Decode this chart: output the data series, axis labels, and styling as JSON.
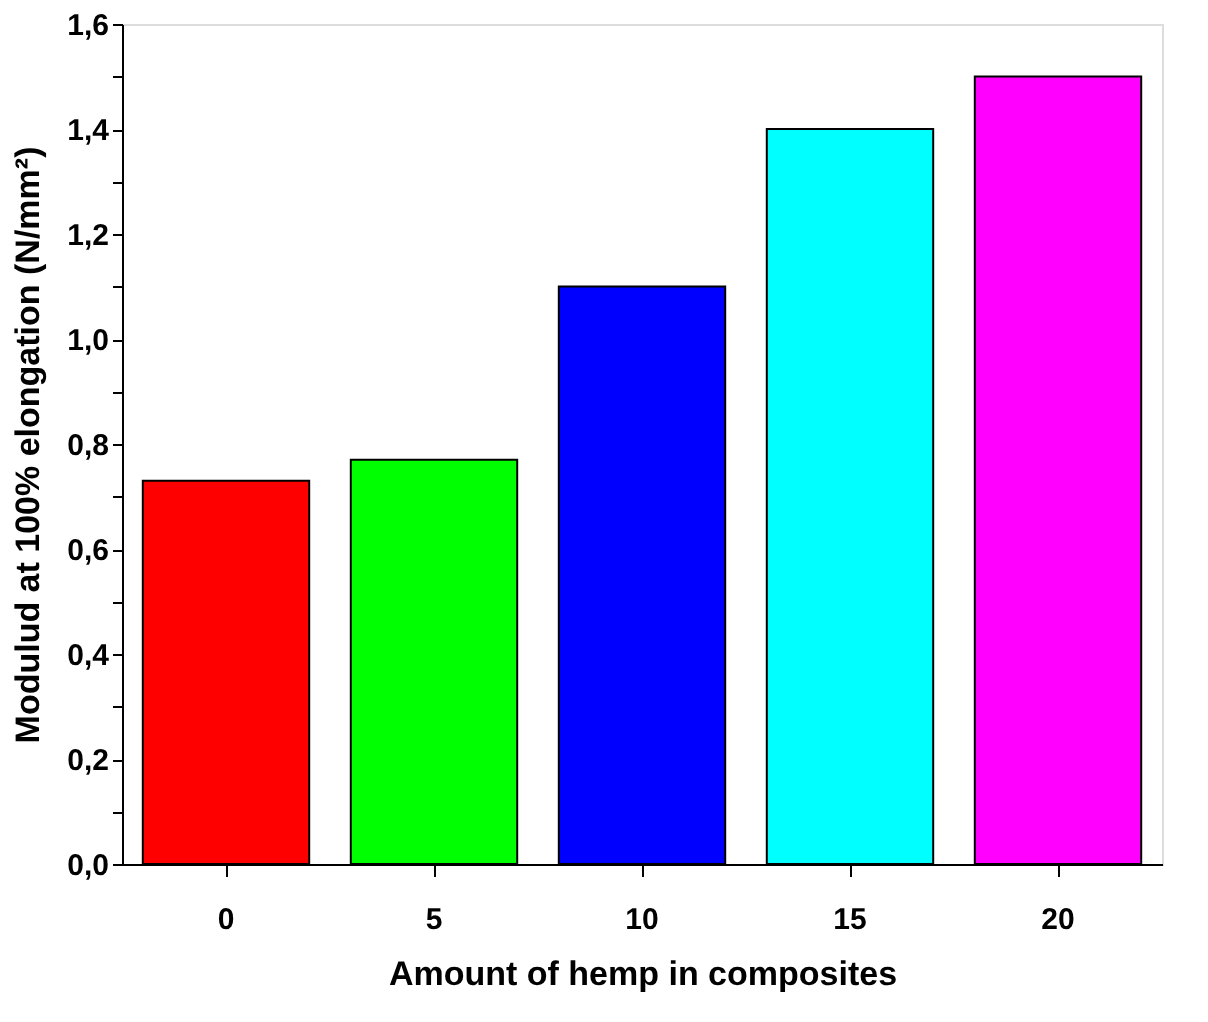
{
  "chart_data": {
    "type": "bar",
    "xlabel": "Amount of hemp in composites",
    "ylabel": "Modulud at 100% elongation (N/mm²)",
    "categories": [
      "0",
      "5",
      "10",
      "15",
      "20"
    ],
    "values": [
      0.73,
      0.77,
      1.1,
      1.4,
      1.5
    ],
    "colors": [
      "#ff0000",
      "#00ff00",
      "#0000ff",
      "#00ffff",
      "#ff00ff"
    ],
    "ylim": [
      0,
      1.6
    ],
    "yticks": [
      {
        "value": 0,
        "label": "0,0"
      },
      {
        "value": 0.1,
        "label": null
      },
      {
        "value": 0.2,
        "label": "0,2"
      },
      {
        "value": 0.3,
        "label": null
      },
      {
        "value": 0.4,
        "label": "0,4"
      },
      {
        "value": 0.5,
        "label": null
      },
      {
        "value": 0.6,
        "label": "0,6"
      },
      {
        "value": 0.7,
        "label": null
      },
      {
        "value": 0.8,
        "label": "0,8"
      },
      {
        "value": 0.9,
        "label": null
      },
      {
        "value": 1.0,
        "label": "1,0"
      },
      {
        "value": 1.1,
        "label": null
      },
      {
        "value": 1.2,
        "label": "1,2"
      },
      {
        "value": 1.3,
        "label": null
      },
      {
        "value": 1.4,
        "label": "1,4"
      },
      {
        "value": 1.5,
        "label": null
      },
      {
        "value": 1.6,
        "label": "1,6"
      }
    ],
    "grid": false,
    "legend": false
  }
}
